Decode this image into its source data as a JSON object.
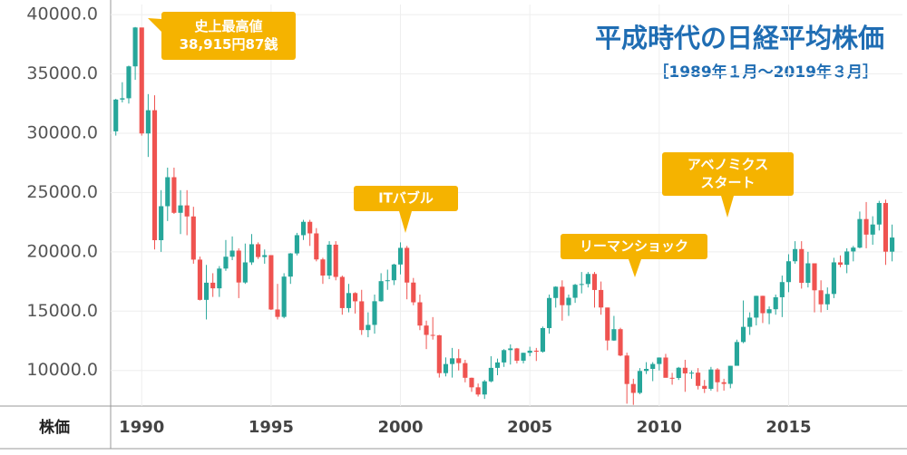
{
  "chart_data": {
    "type": "candlestick",
    "title": "平成時代の日経平均株価",
    "subtitle": "［1989年１月〜2019年３月］",
    "axis_label": "株価",
    "up_color": "#26a69a",
    "down_color": "#ef5350",
    "xlim": [
      1988.8,
      2019.4
    ],
    "xticks": [
      1990,
      1995,
      2000,
      2005,
      2010,
      2015
    ],
    "ylim": [
      7000,
      40850
    ],
    "yticks": [
      {
        "value": 10000,
        "label": "10000.0"
      },
      {
        "value": 15000,
        "label": "15000.0"
      },
      {
        "value": 20000,
        "label": "20000.0"
      },
      {
        "value": 25000,
        "label": "25000.0"
      },
      {
        "value": 30000,
        "label": "30000.0"
      },
      {
        "value": 35000,
        "label": "35000.0"
      },
      {
        "value": 40000,
        "label": "40000.0"
      }
    ],
    "grid": true,
    "annotations": [
      {
        "lines": [
          "史上最高値",
          "38,915円87銭"
        ]
      },
      {
        "lines": [
          "ITバブル"
        ]
      },
      {
        "lines": [
          "リーマンショック"
        ]
      },
      {
        "lines": [
          "アベノミクス",
          "スタート"
        ]
      }
    ],
    "x": [
      1989,
      1989.25,
      1989.5,
      1989.75,
      1990,
      1990.25,
      1990.5,
      1990.75,
      1991,
      1991.25,
      1991.5,
      1991.75,
      1992,
      1992.25,
      1992.5,
      1992.75,
      1993,
      1993.25,
      1993.5,
      1993.75,
      1994,
      1994.25,
      1994.5,
      1994.75,
      1995,
      1995.25,
      1995.5,
      1995.75,
      1996,
      1996.25,
      1996.5,
      1996.75,
      1997,
      1997.25,
      1997.5,
      1997.75,
      1998,
      1998.25,
      1998.5,
      1998.75,
      1999,
      1999.25,
      1999.5,
      1999.75,
      2000,
      2000.25,
      2000.5,
      2000.75,
      2001,
      2001.25,
      2001.5,
      2001.75,
      2002,
      2002.25,
      2002.5,
      2002.75,
      2003,
      2003.25,
      2003.5,
      2003.75,
      2004,
      2004.25,
      2004.5,
      2004.75,
      2005,
      2005.25,
      2005.5,
      2005.75,
      2006,
      2006.25,
      2006.5,
      2006.75,
      2007,
      2007.25,
      2007.5,
      2007.75,
      2008,
      2008.25,
      2008.5,
      2008.75,
      2009,
      2009.25,
      2009.5,
      2009.75,
      2010,
      2010.25,
      2010.5,
      2010.75,
      2011,
      2011.25,
      2011.5,
      2011.75,
      2012,
      2012.25,
      2012.5,
      2012.75,
      2013,
      2013.25,
      2013.5,
      2013.75,
      2014,
      2014.25,
      2014.5,
      2014.75,
      2015,
      2015.25,
      2015.5,
      2015.75,
      2016,
      2016.25,
      2016.5,
      2016.75,
      2017,
      2017.25,
      2017.5,
      2017.75,
      2018,
      2018.25,
      2018.5,
      2018.75,
      2019
    ],
    "open": [
      30159,
      32839,
      32948,
      35637,
      38916,
      29980,
      31940,
      20984,
      23849,
      26292,
      23291,
      23916,
      22984,
      19346,
      15952,
      17399,
      16925,
      18591,
      19590,
      20106,
      17417,
      19112,
      20644,
      19564,
      19723,
      15140,
      14517,
      17913,
      19868,
      21407,
      22531,
      21556,
      19361,
      18003,
      20605,
      17888,
      15259,
      16527,
      15830,
      13406,
      13842,
      15837,
      17530,
      17605,
      18934,
      20337,
      17411,
      15747,
      13786,
      12999,
      12969,
      9775,
      10543,
      11025,
      10622,
      9383,
      8579,
      7973,
      9083,
      10219,
      10677,
      11715,
      11858,
      10824,
      11489,
      11669,
      11584,
      13574,
      16111,
      17060,
      15505,
      16128,
      17226,
      17288,
      18138,
      16786,
      15308,
      12526,
      13481,
      11260,
      8860,
      8110,
      9958,
      10133,
      10546,
      11090,
      9383,
      9369,
      10229,
      9755,
      9816,
      8700,
      8455,
      10084,
      9007,
      8870,
      10395,
      12398,
      13677,
      14456,
      16291,
      14828,
      15162,
      16174,
      17451,
      19207,
      20236,
      17388,
      19034,
      16759,
      15576,
      16450,
      19114,
      18909,
      20033,
      20356,
      22765,
      21454,
      22305,
      24120,
      20015
    ],
    "high": [
      32900,
      34300,
      35700,
      38957,
      38900,
      33300,
      33200,
      25200,
      27100,
      27100,
      25200,
      25200,
      23800,
      19600,
      18900,
      18200,
      18800,
      21000,
      21300,
      20300,
      20700,
      21500,
      20800,
      20200,
      19700,
      17300,
      18200,
      19900,
      21600,
      22700,
      22700,
      22000,
      19500,
      20900,
      20900,
      18000,
      17300,
      16600,
      16800,
      14900,
      16400,
      18200,
      18500,
      19000,
      20800,
      20500,
      17800,
      16400,
      14200,
      14500,
      13000,
      11100,
      11900,
      11800,
      10900,
      9400,
      8900,
      9200,
      11200,
      11000,
      11800,
      12200,
      11900,
      11500,
      12000,
      11900,
      13700,
      16400,
      17100,
      17600,
      16400,
      17300,
      18300,
      18300,
      18300,
      17500,
      15300,
      14600,
      13600,
      11500,
      9300,
      10200,
      10700,
      10700,
      11100,
      11400,
      9800,
      10300,
      10900,
      10000,
      10200,
      9200,
      10300,
      10200,
      9300,
      10400,
      12600,
      15900,
      14900,
      16300,
      16300,
      15400,
      16400,
      18000,
      19800,
      20900,
      20900,
      20000,
      19000,
      17600,
      17000,
      19500,
      19700,
      20300,
      20500,
      23400,
      24200,
      23000,
      24300,
      24400,
      22300
    ],
    "low": [
      29800,
      32600,
      32500,
      34500,
      29800,
      28000,
      20200,
      20000,
      22600,
      23200,
      21500,
      21400,
      19000,
      15900,
      14300,
      16200,
      16200,
      18400,
      19300,
      16100,
      17300,
      18900,
      19400,
      19000,
      15100,
      14300,
      14400,
      17300,
      19700,
      21000,
      20500,
      19200,
      17300,
      17700,
      17600,
      14700,
      14900,
      14800,
      13000,
      12800,
      13100,
      15800,
      16800,
      17200,
      18100,
      16000,
      15500,
      13400,
      11800,
      12600,
      9400,
      9500,
      9400,
      10000,
      9000,
      8200,
      7800,
      7600,
      9000,
      9600,
      10300,
      10500,
      10600,
      10600,
      11200,
      10800,
      11500,
      13100,
      15300,
      14200,
      14600,
      15700,
      16500,
      17000,
      15300,
      14700,
      11700,
      12500,
      11200,
      7200,
      7100,
      8000,
      9700,
      9100,
      10000,
      9400,
      8800,
      9200,
      8200,
      9300,
      8400,
      8100,
      8300,
      8200,
      8300,
      8500,
      10400,
      12300,
      13000,
      13800,
      14000,
      13900,
      14700,
      14500,
      16600,
      19000,
      16900,
      17000,
      14900,
      14900,
      15100,
      16100,
      18700,
      18200,
      19200,
      20300,
      20300,
      20600,
      21800,
      18900,
      19200
    ],
    "close": [
      32839,
      32948,
      35637,
      38916,
      29980,
      31940,
      20984,
      23849,
      26292,
      23291,
      23916,
      22984,
      19346,
      15952,
      17399,
      16925,
      18591,
      19590,
      20106,
      17417,
      19112,
      20644,
      19564,
      19723,
      15140,
      14517,
      17913,
      19868,
      21407,
      22531,
      21556,
      19361,
      18003,
      20605,
      17888,
      15259,
      16527,
      15830,
      13406,
      13842,
      15837,
      17530,
      17605,
      18934,
      20337,
      17411,
      15747,
      13786,
      12999,
      12969,
      9775,
      10543,
      11025,
      10622,
      9383,
      8579,
      7973,
      9083,
      10219,
      10677,
      11715,
      11858,
      10824,
      11489,
      11669,
      11584,
      13574,
      16111,
      17060,
      15505,
      16128,
      17226,
      17288,
      18138,
      16786,
      15308,
      12526,
      13481,
      11260,
      8860,
      8110,
      9958,
      10133,
      10546,
      11090,
      9383,
      9369,
      10229,
      9755,
      9816,
      8700,
      8455,
      10084,
      9007,
      8870,
      10395,
      12398,
      13677,
      14456,
      16291,
      14828,
      15162,
      16174,
      17451,
      19207,
      20236,
      17388,
      19034,
      16759,
      15576,
      16450,
      19114,
      18909,
      20033,
      20356,
      22765,
      21454,
      22305,
      24120,
      20015,
      21206
    ]
  }
}
